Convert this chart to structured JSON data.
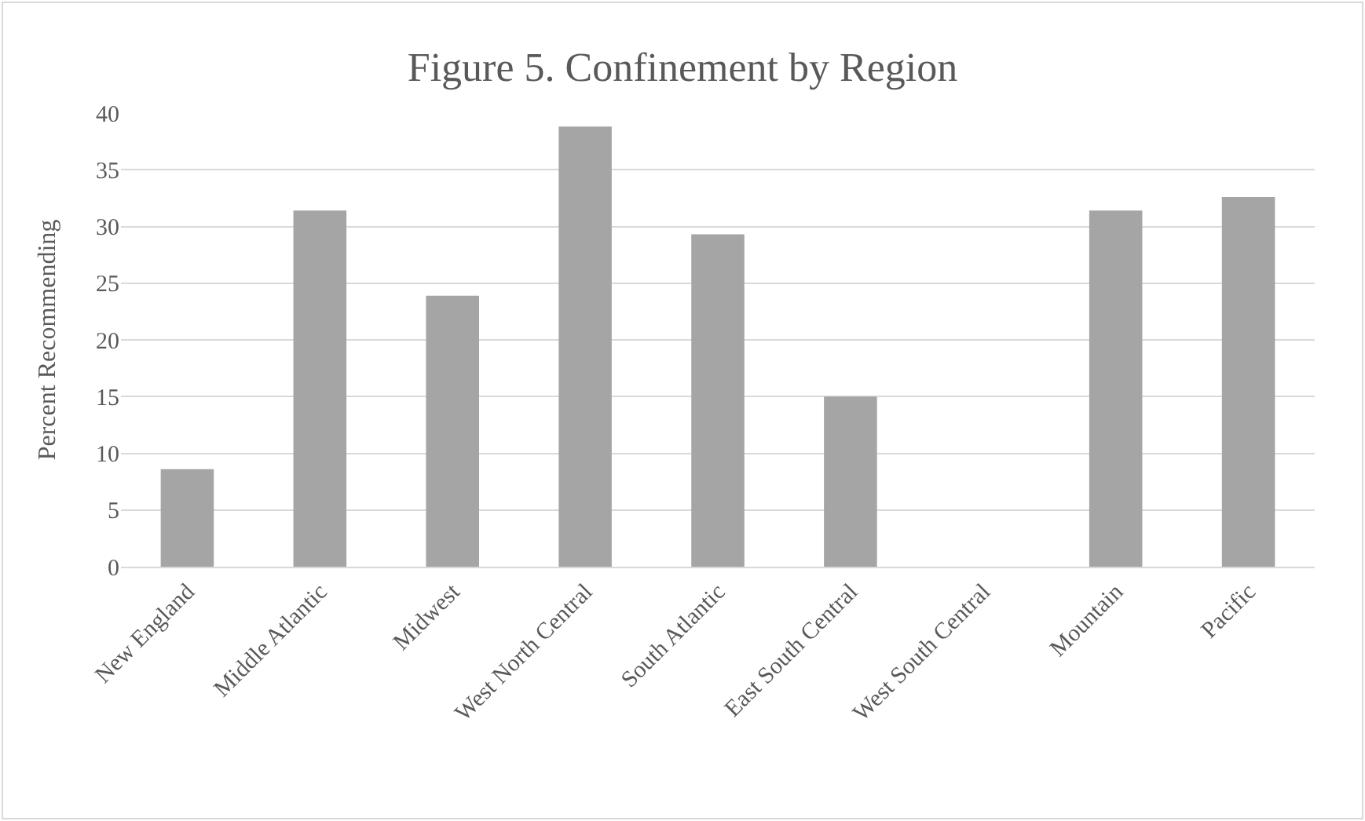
{
  "chart_data": {
    "type": "bar",
    "title": "Figure 5. Confinement by Region",
    "ylabel": "Percent Recommending",
    "categories": [
      "New England",
      "Middle Atlantic",
      "Midwest",
      "West North Central",
      "South Atlantic",
      "East South Central",
      "West South Central",
      "Mountain",
      "Pacific"
    ],
    "values": [
      8.6,
      31.4,
      23.9,
      38.8,
      29.3,
      15.0,
      0,
      31.4,
      32.6
    ],
    "color": "#a5a5a5",
    "ylim": [
      0,
      40
    ],
    "yticks": [
      0,
      5,
      10,
      15,
      20,
      25,
      30,
      35,
      40
    ],
    "grid": "y"
  }
}
